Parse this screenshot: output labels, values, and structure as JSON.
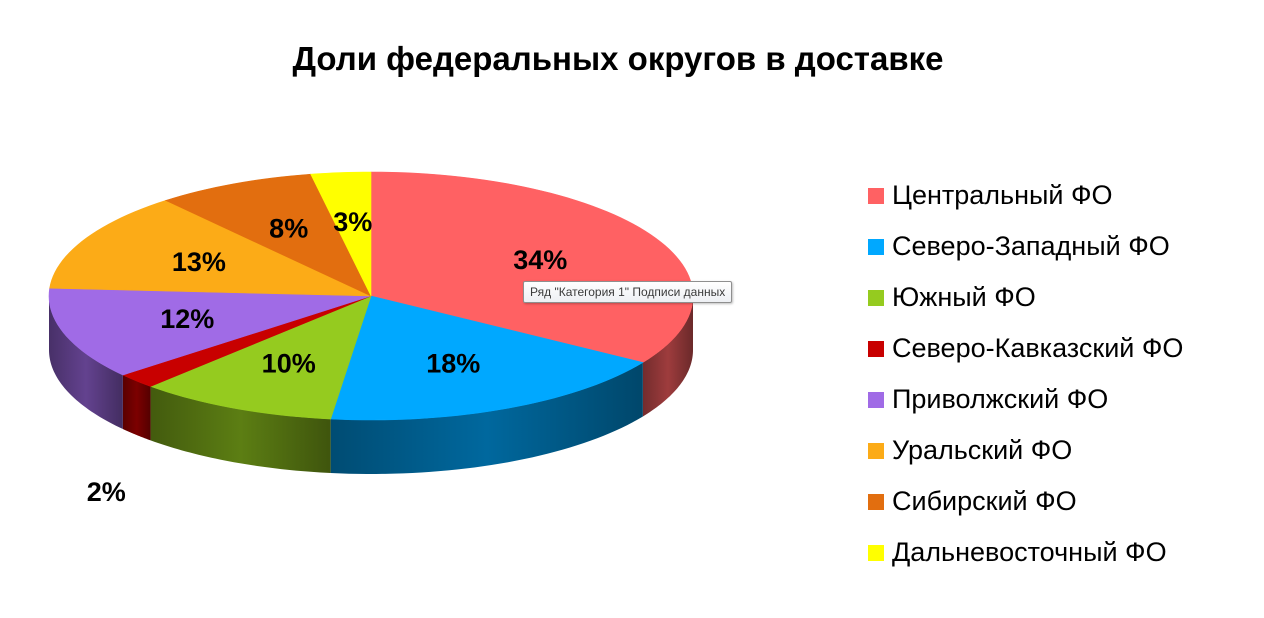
{
  "chart_data": {
    "type": "pie",
    "title": "Доли федеральных округов в доставке",
    "categories": [
      "Центральный ФО",
      "Северо-Западный ФО",
      "Южный ФО",
      "Северо-Кавказский ФО",
      "Приволжский ФО",
      "Уральский ФО",
      "Сибирский ФО",
      "Дальневосточный ФО"
    ],
    "values": [
      34,
      18,
      10,
      2,
      12,
      13,
      8,
      3
    ],
    "labels": [
      "34%",
      "18%",
      "10%",
      "2%",
      "12%",
      "13%",
      "8%",
      "3%"
    ],
    "colors": [
      "#ff6163",
      "#00a8ff",
      "#95cb1f",
      "#c80000",
      "#a06be6",
      "#fcab17",
      "#e26e0f",
      "#ffff00"
    ],
    "legend_position": "right"
  },
  "tooltip": "Ряд \"Категория 1\" Подписи данных"
}
